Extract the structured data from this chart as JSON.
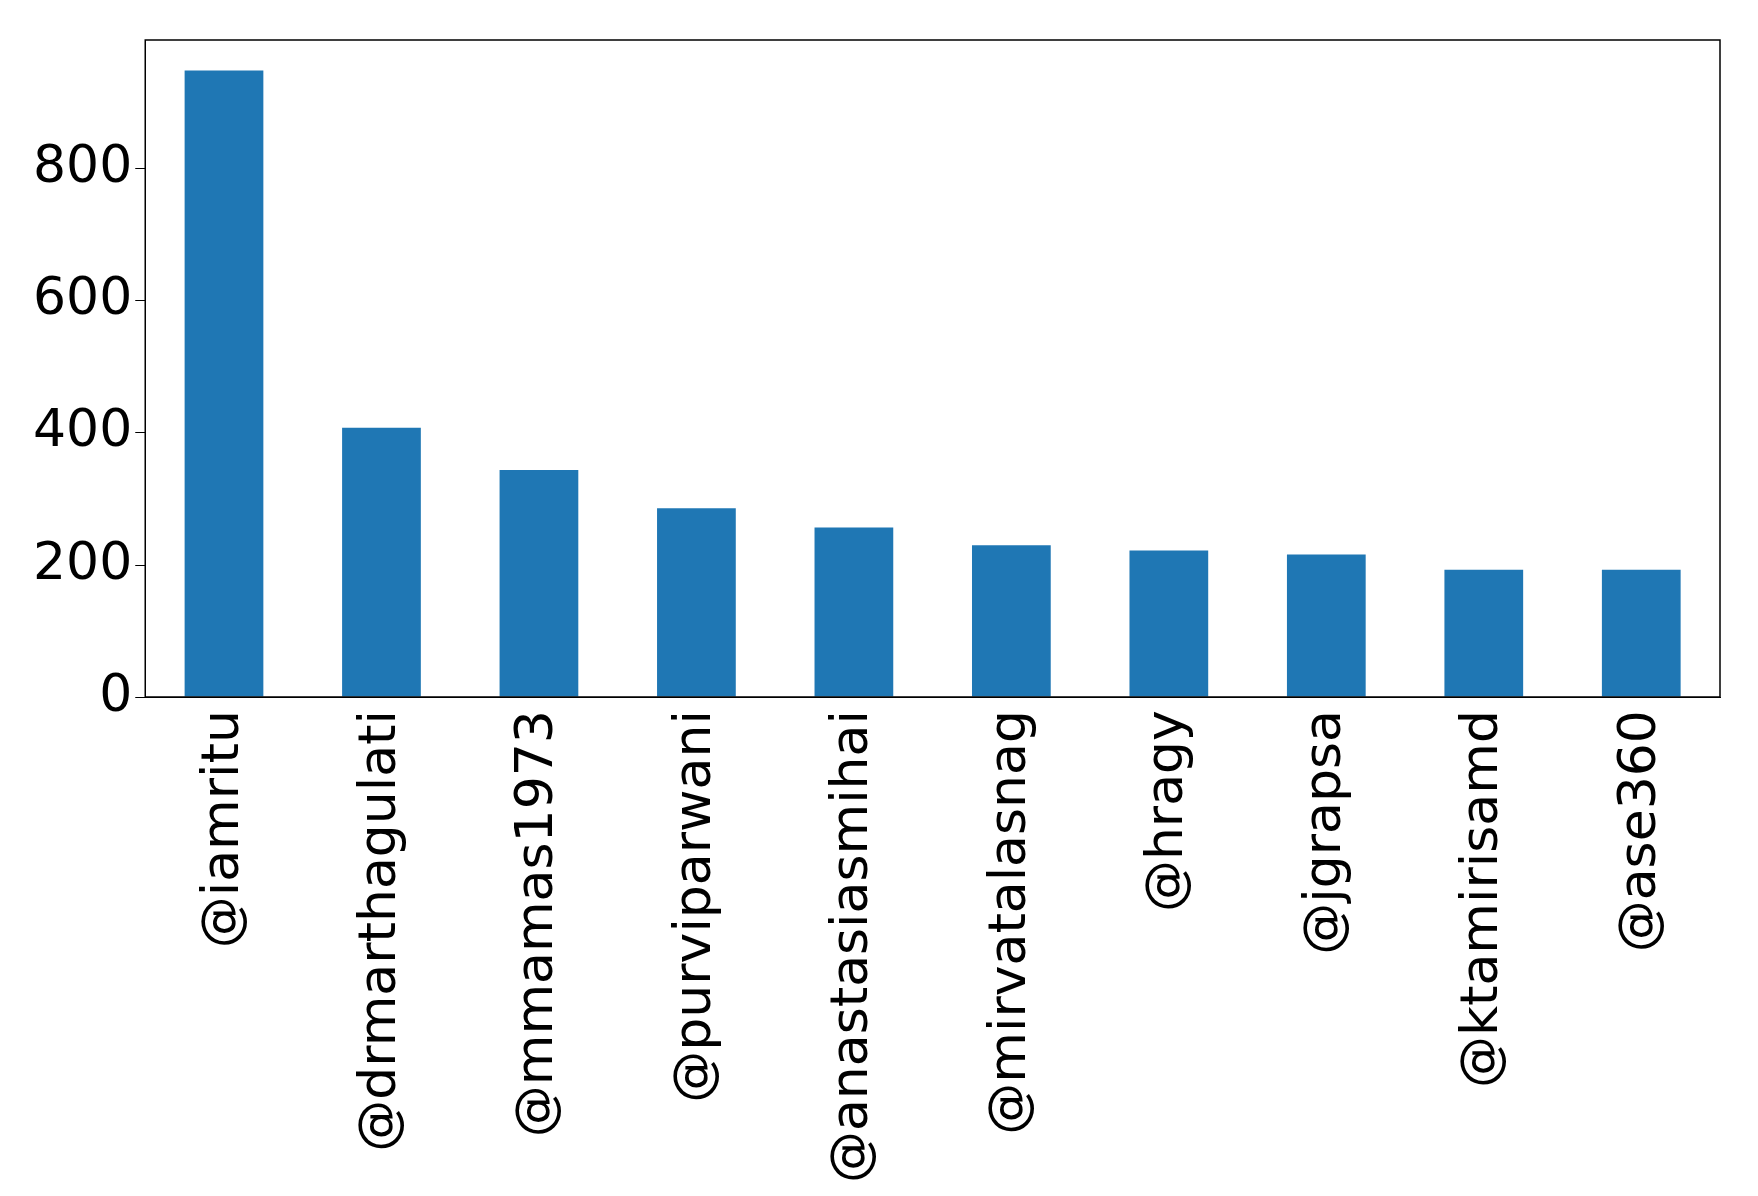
{
  "chart_data": {
    "type": "bar",
    "categories": [
      "@iamritu",
      "@drmarthagulati",
      "@mmamas1973",
      "@purviparwani",
      "@anastasiasmihai",
      "@mirvatalasnag",
      "@hragy",
      "@jgrapsa",
      "@ktamirisamd",
      "@ase360"
    ],
    "values": [
      949,
      408,
      344,
      286,
      257,
      230,
      222,
      216,
      193,
      193
    ],
    "color": "#1f77b4",
    "ylim": [
      0,
      995
    ],
    "yticks": [
      0,
      200,
      400,
      600,
      800
    ],
    "grid": false,
    "legend": false
  }
}
